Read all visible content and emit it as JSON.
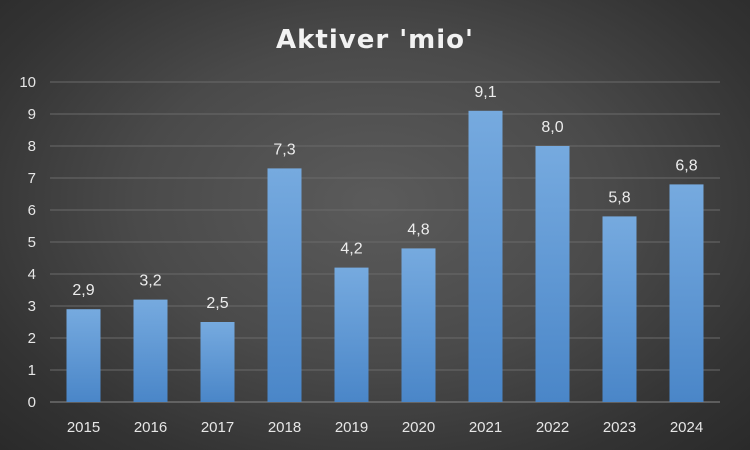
{
  "chart_data": {
    "type": "bar",
    "title": "Aktiver 'mio'",
    "xlabel": "",
    "ylabel": "",
    "categories": [
      "2015",
      "2016",
      "2017",
      "2018",
      "2019",
      "2020",
      "2021",
      "2022",
      "2023",
      "2024"
    ],
    "values": [
      2.9,
      3.2,
      2.5,
      7.3,
      4.2,
      4.8,
      9.1,
      8.0,
      5.8,
      6.8
    ],
    "data_labels": [
      "2,9",
      "3,2",
      "2,5",
      "7,3",
      "4,2",
      "4,8",
      "9,1",
      "8,0",
      "5,8",
      "6,8"
    ],
    "ylim": [
      0,
      10
    ],
    "yticks": [
      "0",
      "1",
      "2",
      "3",
      "4",
      "5",
      "6",
      "7",
      "8",
      "9",
      "10"
    ],
    "grid": true,
    "legend": "none",
    "colors": {
      "bar_top": "#76aadf",
      "bar_bottom": "#4a86c8",
      "background": "#4a4a4a"
    }
  }
}
